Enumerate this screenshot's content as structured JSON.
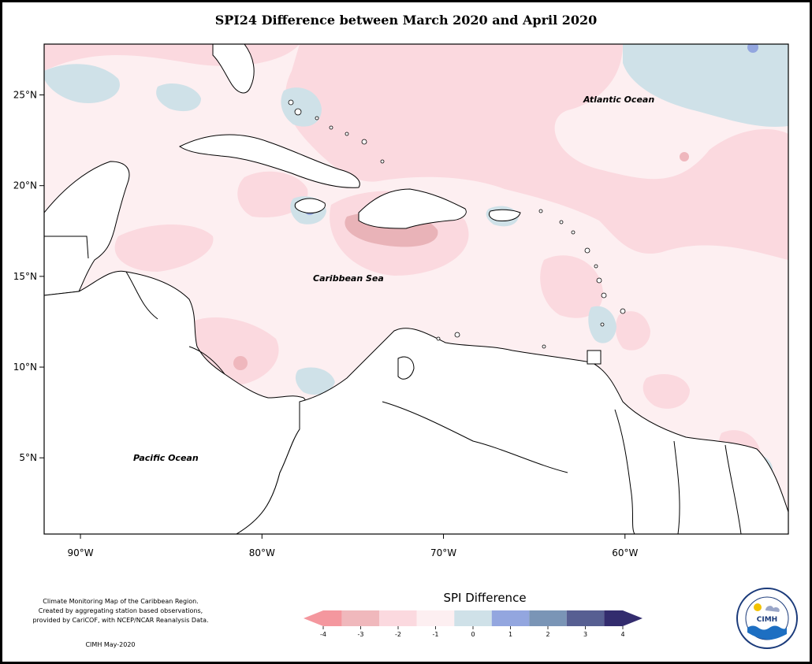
{
  "title": "SPI24 Difference between March 2020 and April 2020",
  "map": {
    "lon_range": [
      -92,
      -51
    ],
    "lat_range": [
      0.8,
      27.8
    ],
    "lon_ticks": [
      {
        "lon": -90,
        "label": "90°W"
      },
      {
        "lon": -80,
        "label": "80°W"
      },
      {
        "lon": -70,
        "label": "70°W"
      },
      {
        "lon": -60,
        "label": "60°W"
      }
    ],
    "lat_ticks": [
      {
        "lat": 25,
        "label": "25°N"
      },
      {
        "lat": 20,
        "label": "20°N"
      },
      {
        "lat": 15,
        "label": "15°N"
      },
      {
        "lat": 10,
        "label": "10°N"
      },
      {
        "lat": 5,
        "label": "5°N"
      }
    ],
    "labels": {
      "atlantic": "Atlantic Ocean",
      "caribbean": "Caribbean Sea",
      "pacific": "Pacific Ocean"
    }
  },
  "legend": {
    "title": "SPI Difference",
    "ticks": [
      "-4",
      "-3",
      "-2",
      "-1",
      "0",
      "1",
      "2",
      "3",
      "4"
    ],
    "colors": [
      "#f4979e",
      "#f0b8bc",
      "#fbd9df",
      "#fdeff1",
      "#cfe1e8",
      "#93a6df",
      "#7a95b6",
      "#575f92",
      "#332c6e"
    ]
  },
  "caption": {
    "line1": "Climate Monitoring Map of the Caribbean Region.",
    "line2": "Created by aggregating station based observations,",
    "line3": "provided by CariCOF, with NCEP/NCAR Reanalysis Data."
  },
  "credit": "CIMH May-2020",
  "logo": {
    "text": "CIMH",
    "ring_text": "Caribbean Institute for Meteorology and Hydrology",
    "icon": "cimh-logo"
  }
}
